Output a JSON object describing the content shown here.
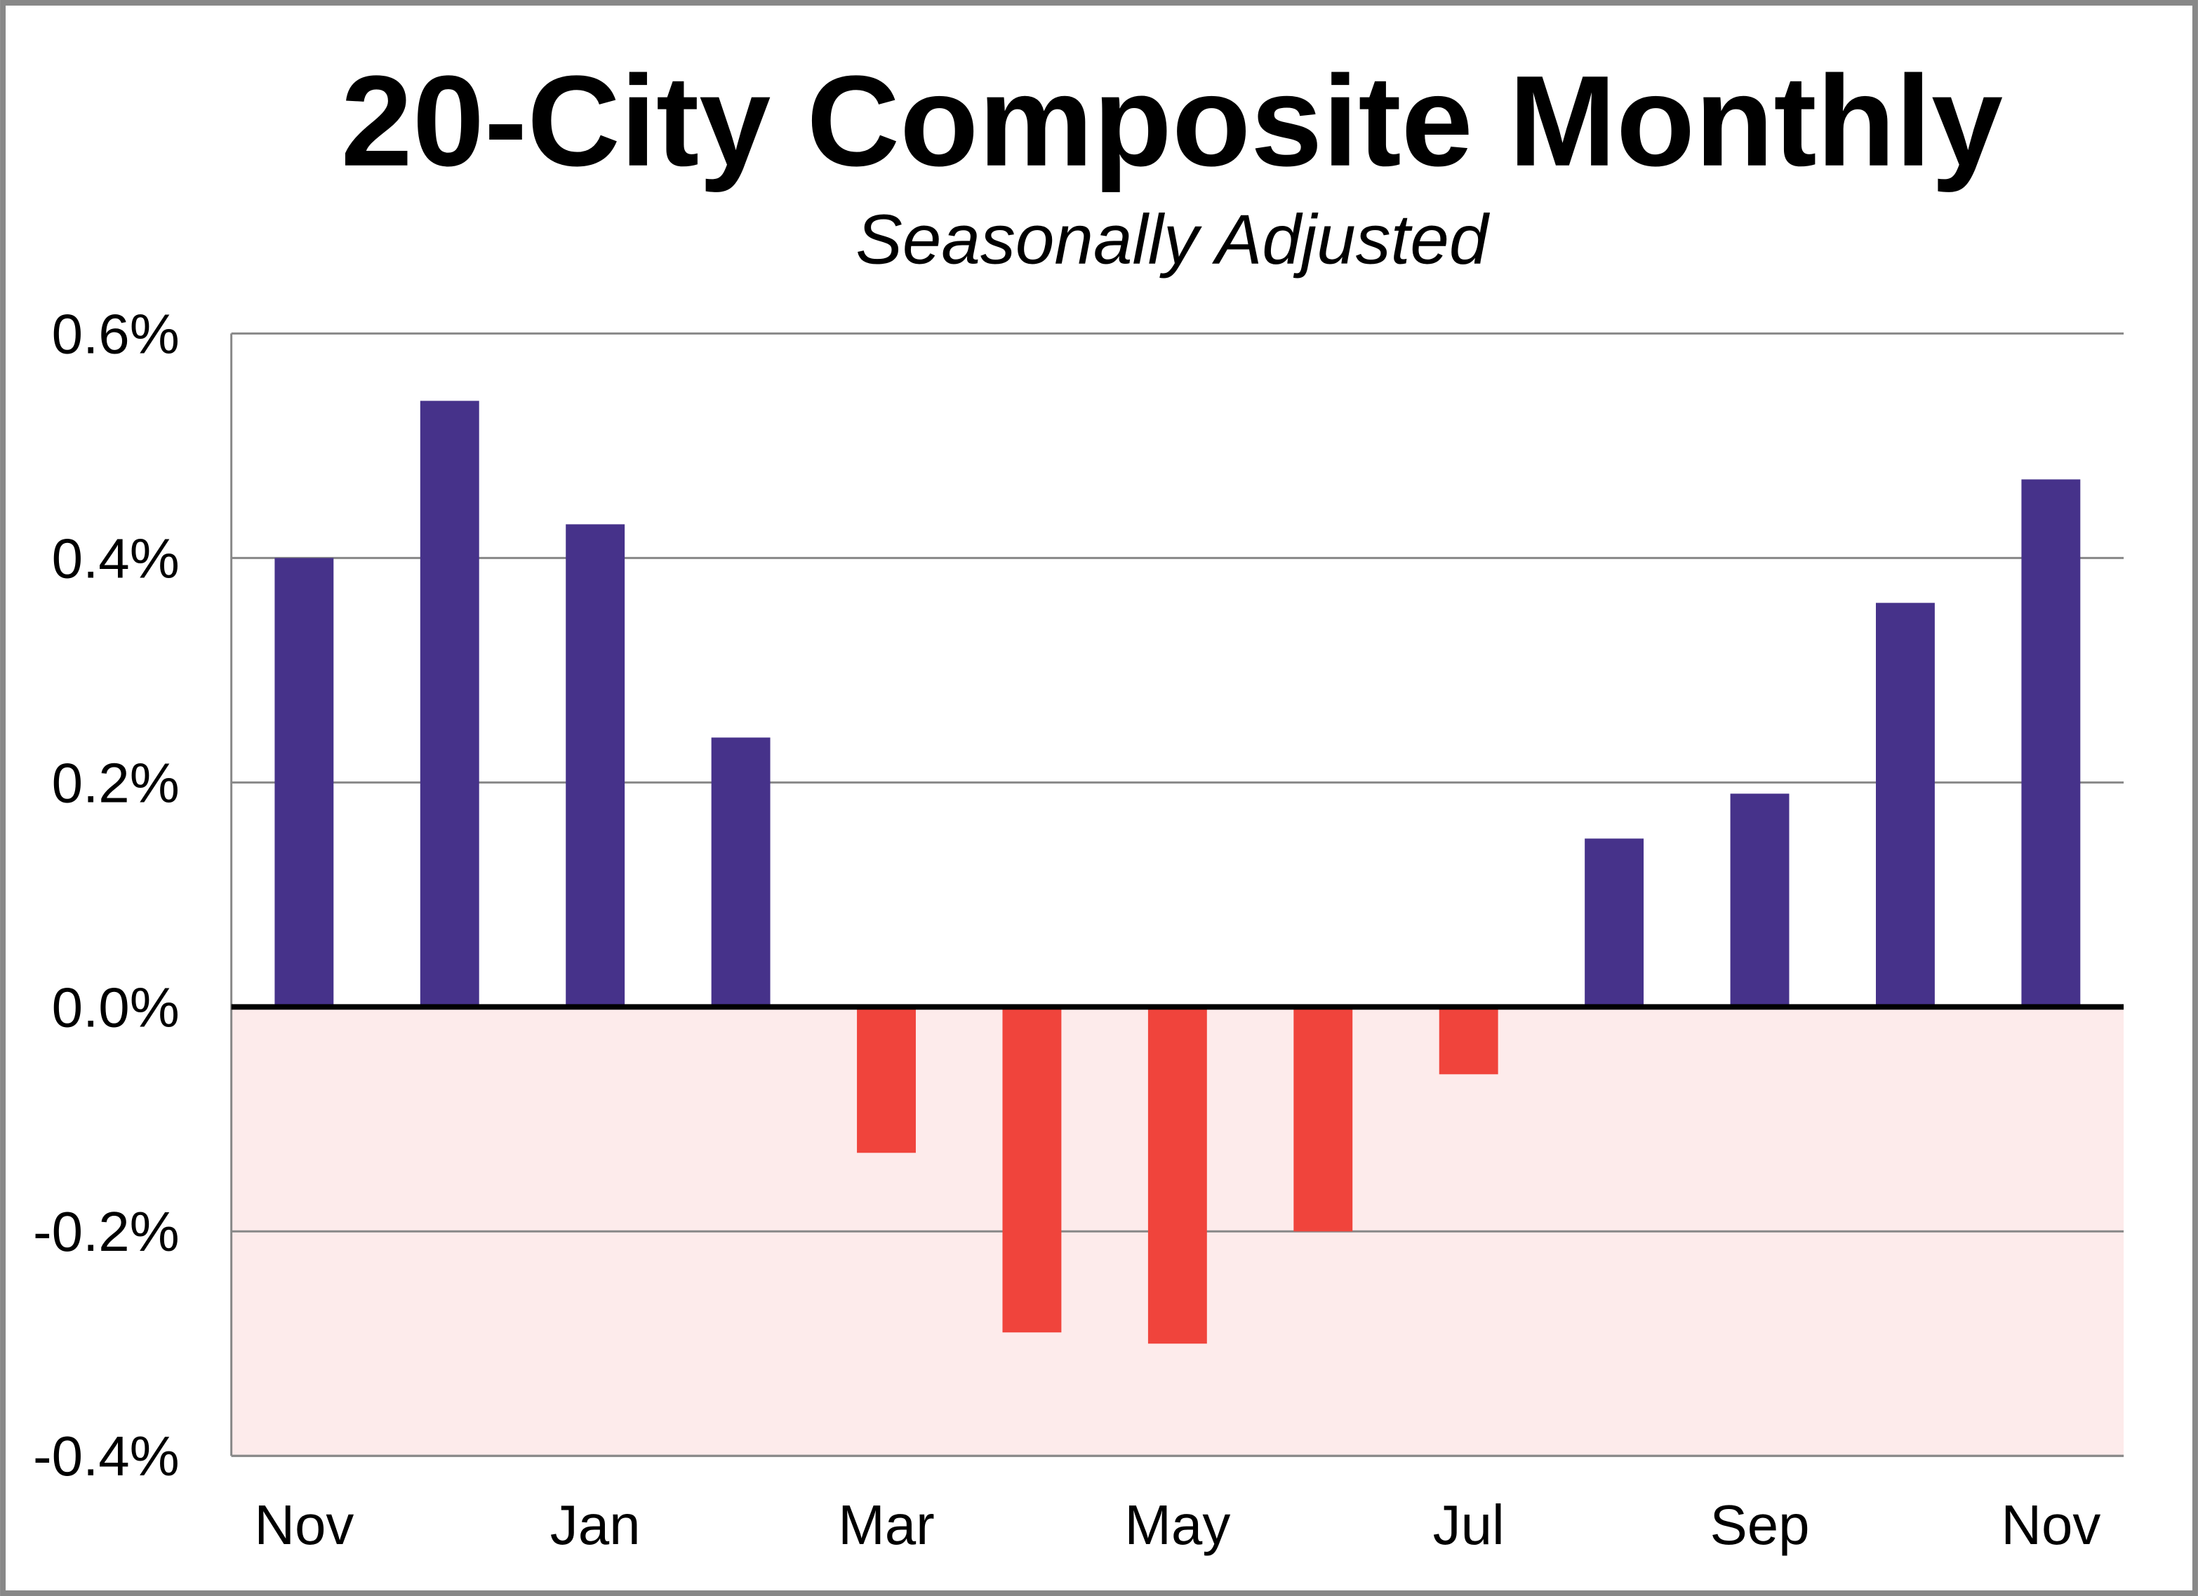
{
  "chart_data": {
    "type": "bar",
    "title": "20-City Composite Monthly",
    "subtitle": "Seasonally Adjusted",
    "xlabel": "",
    "ylabel": "",
    "categories": [
      "Nov",
      "",
      "Jan",
      "",
      "Mar",
      "",
      "May",
      "",
      "Jul",
      "",
      "Sep",
      "",
      "Nov"
    ],
    "values": [
      0.4,
      0.54,
      0.43,
      0.24,
      -0.13,
      -0.29,
      -0.3,
      -0.2,
      -0.06,
      0.15,
      0.19,
      0.36,
      0.47
    ],
    "value_unit": "%",
    "ylim": [
      -0.4,
      0.6
    ],
    "y_ticks": [
      0.6,
      0.4,
      0.2,
      0.0,
      -0.2,
      -0.4
    ],
    "y_tick_labels": [
      "0.6%",
      "0.4%",
      "0.2%",
      "0.0%",
      "-0.2%",
      "-0.4%"
    ],
    "grid": true,
    "legend": "none",
    "colors": {
      "positive": "#46328A",
      "negative": "#F0443C",
      "negative_region": "#FDEBEB",
      "zero_line": "#000000",
      "grid": "#888888",
      "frame": "#888888"
    }
  }
}
